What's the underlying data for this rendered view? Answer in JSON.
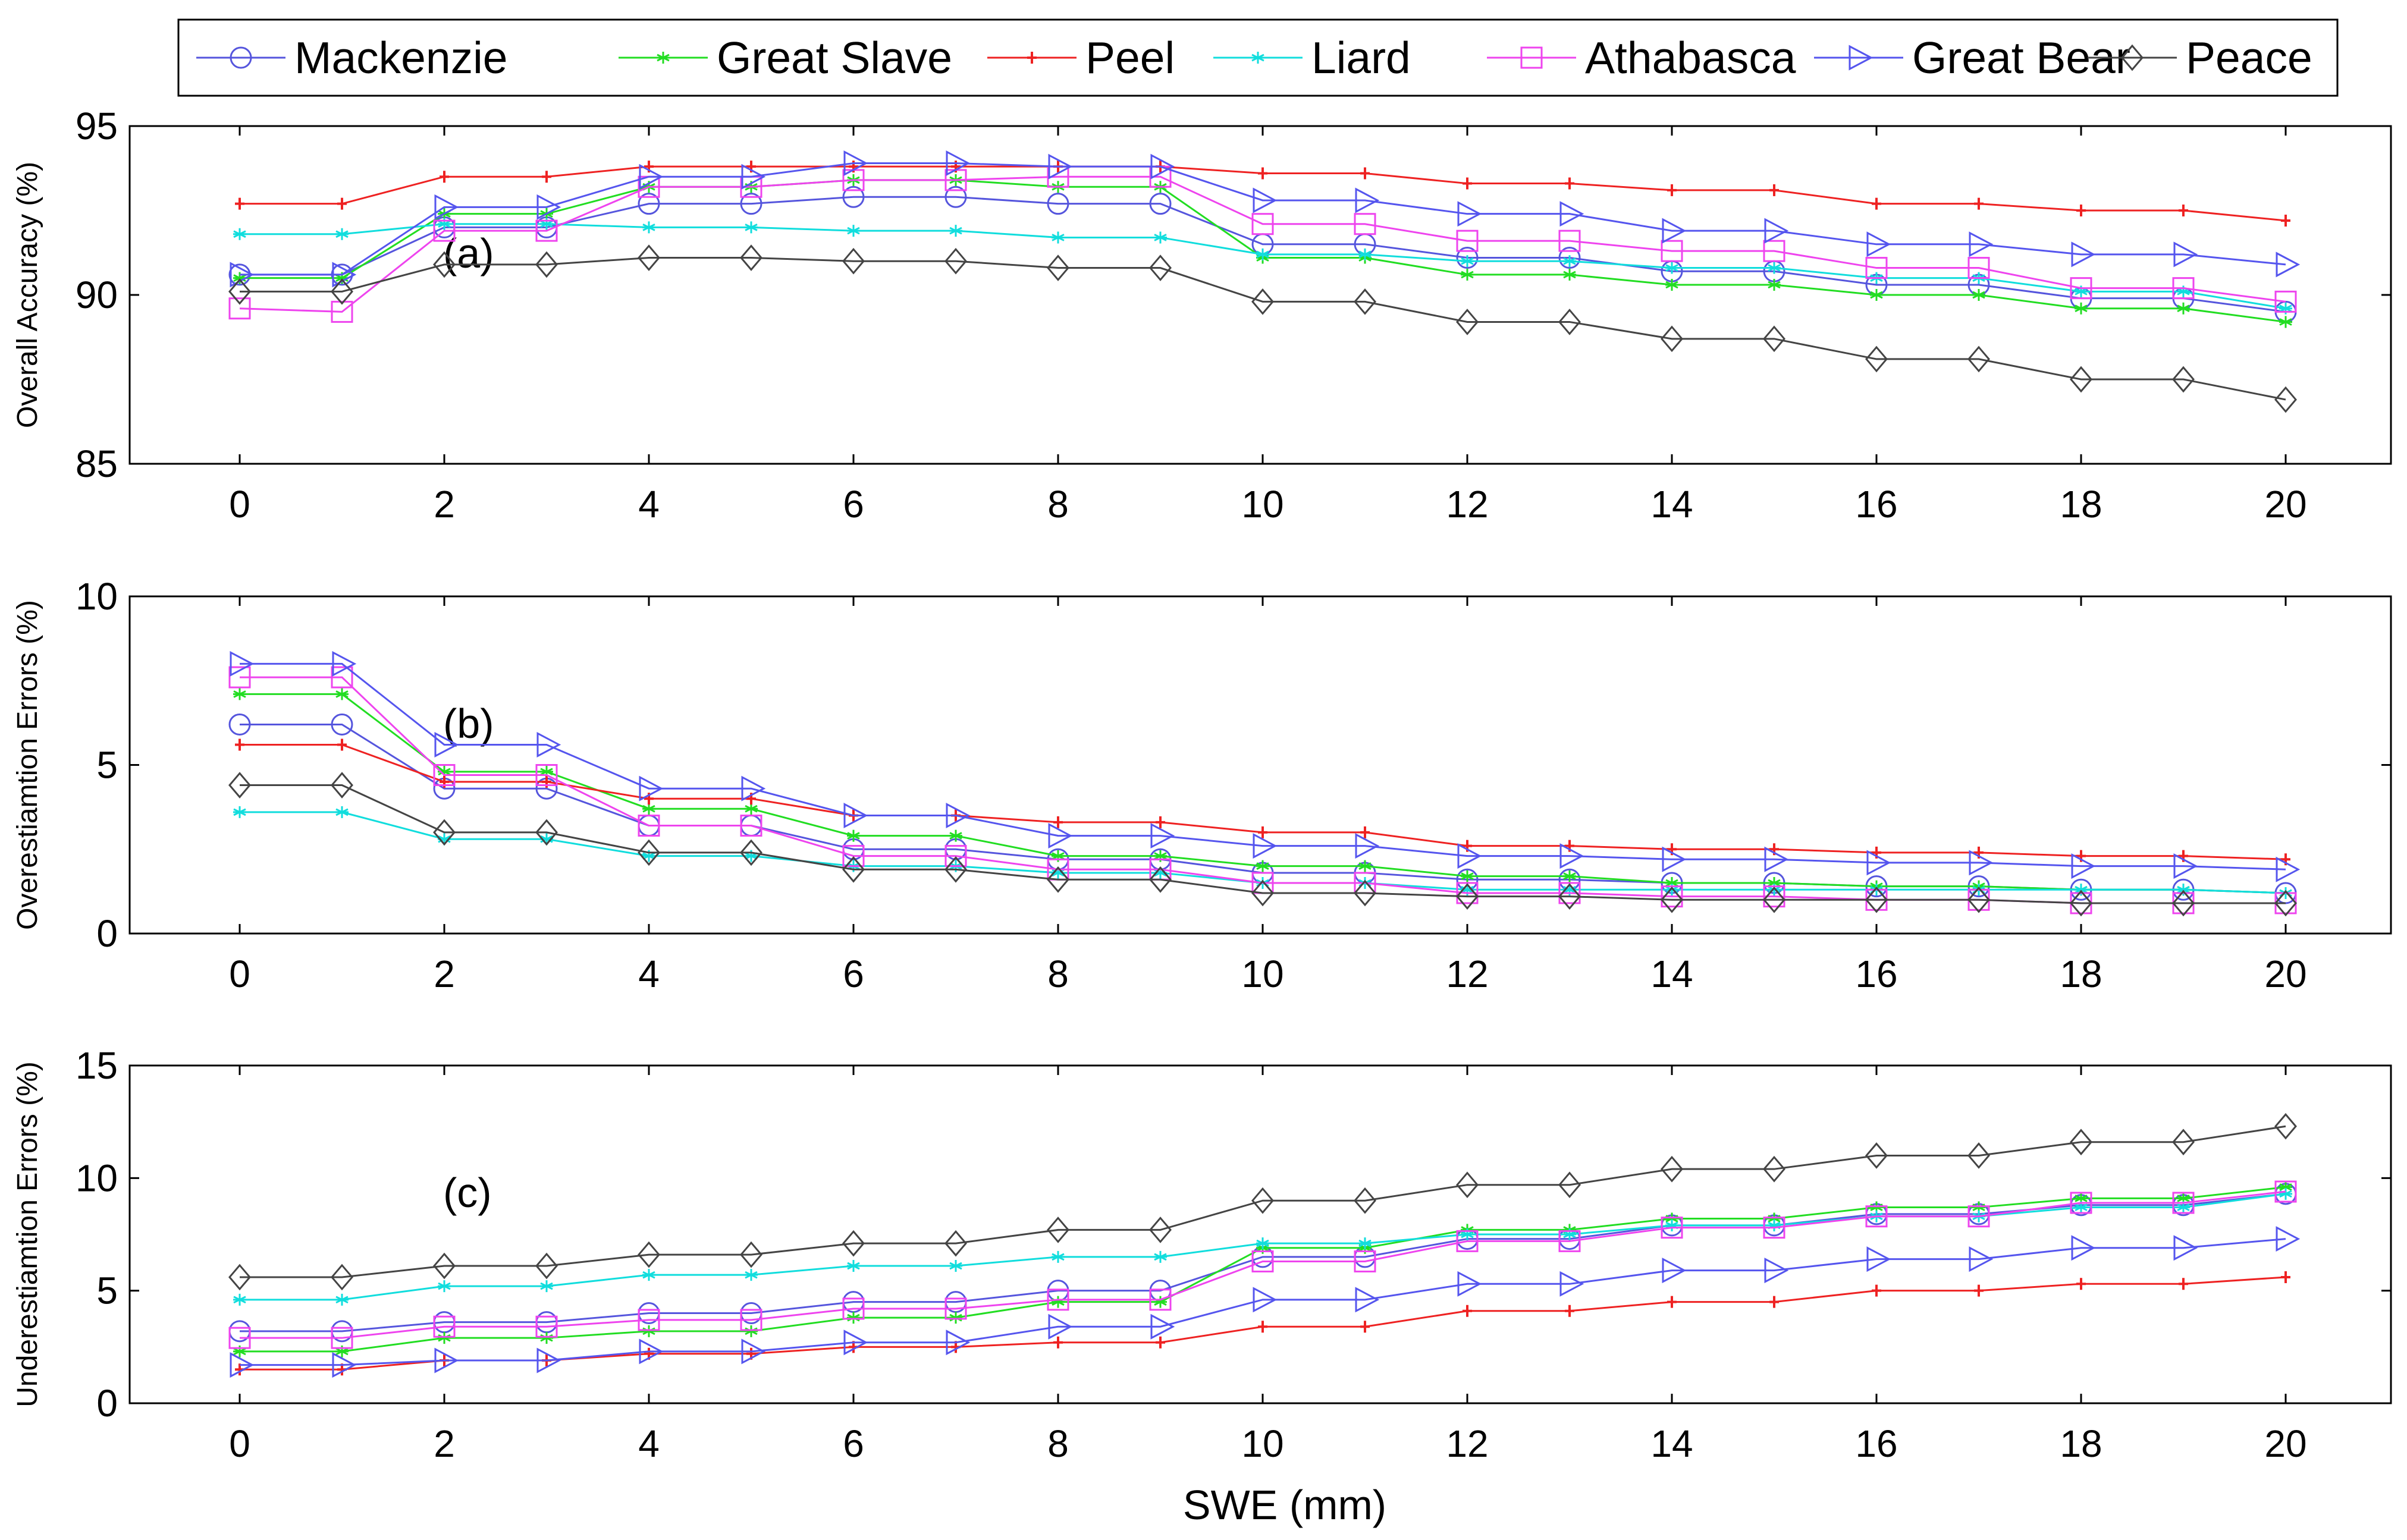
{
  "chart_data": {
    "type": "line",
    "xlabel": "SWE (mm)",
    "x": [
      0,
      1,
      2,
      3,
      4,
      5,
      6,
      7,
      8,
      9,
      10,
      11,
      12,
      13,
      14,
      15,
      16,
      17,
      18,
      19,
      20
    ],
    "xticks": [
      "0",
      "2",
      "4",
      "6",
      "8",
      "10",
      "12",
      "14",
      "16",
      "18",
      "20"
    ],
    "legend": {
      "placement": "top",
      "entries": [
        "Mackenzie",
        "Great Slave",
        "Peel",
        "Liard",
        "Athabasca",
        "Great Bear",
        "Peace"
      ]
    },
    "series_styles": [
      {
        "name": "Mackenzie",
        "color": "#5555dd",
        "marker": "circle"
      },
      {
        "name": "Great Slave",
        "color": "#22dd22",
        "marker": "star"
      },
      {
        "name": "Peel",
        "color": "#ee2222",
        "marker": "plus"
      },
      {
        "name": "Liard",
        "color": "#11dddd",
        "marker": "star"
      },
      {
        "name": "Athabasca",
        "color": "#ee44ee",
        "marker": "square"
      },
      {
        "name": "Great Bear",
        "color": "#5555ee",
        "marker": "triangle-right"
      },
      {
        "name": "Peace",
        "color": "#444444",
        "marker": "diamond"
      }
    ],
    "panels": [
      {
        "id": "a",
        "label": "(a)",
        "ylabel": "Overall Accuracy (%)",
        "ylim": [
          85,
          95
        ],
        "yticks": [
          "85",
          "90",
          "95"
        ],
        "series": [
          {
            "name": "Mackenzie",
            "values": [
              90.6,
              90.6,
              92.0,
              92.0,
              92.7,
              92.7,
              92.9,
              92.9,
              92.7,
              92.7,
              91.5,
              91.5,
              91.1,
              91.1,
              90.7,
              90.7,
              90.3,
              90.3,
              89.9,
              89.9,
              89.5
            ]
          },
          {
            "name": "Great Slave",
            "values": [
              90.5,
              90.5,
              92.4,
              92.4,
              93.2,
              93.2,
              93.4,
              93.4,
              93.2,
              93.2,
              91.1,
              91.1,
              90.6,
              90.6,
              90.3,
              90.3,
              90.0,
              90.0,
              89.6,
              89.6,
              89.2
            ]
          },
          {
            "name": "Peel",
            "values": [
              92.7,
              92.7,
              93.5,
              93.5,
              93.8,
              93.8,
              93.8,
              93.8,
              93.8,
              93.8,
              93.6,
              93.6,
              93.3,
              93.3,
              93.1,
              93.1,
              92.7,
              92.7,
              92.5,
              92.5,
              92.2
            ]
          },
          {
            "name": "Liard",
            "values": [
              91.8,
              91.8,
              92.1,
              92.1,
              92.0,
              92.0,
              91.9,
              91.9,
              91.7,
              91.7,
              91.2,
              91.2,
              91.0,
              91.0,
              90.8,
              90.8,
              90.5,
              90.5,
              90.1,
              90.1,
              89.6
            ]
          },
          {
            "name": "Athabasca",
            "values": [
              89.6,
              89.5,
              91.9,
              91.9,
              93.2,
              93.2,
              93.4,
              93.4,
              93.5,
              93.5,
              92.1,
              92.1,
              91.6,
              91.6,
              91.3,
              91.3,
              90.8,
              90.8,
              90.2,
              90.2,
              89.8
            ]
          },
          {
            "name": "Great Bear",
            "values": [
              90.6,
              90.6,
              92.6,
              92.6,
              93.5,
              93.5,
              93.9,
              93.9,
              93.8,
              93.8,
              92.8,
              92.8,
              92.4,
              92.4,
              91.9,
              91.9,
              91.5,
              91.5,
              91.2,
              91.2,
              90.9
            ]
          },
          {
            "name": "Peace",
            "values": [
              90.1,
              90.1,
              90.9,
              90.9,
              91.1,
              91.1,
              91.0,
              91.0,
              90.8,
              90.8,
              89.8,
              89.8,
              89.2,
              89.2,
              88.7,
              88.7,
              88.1,
              88.1,
              87.5,
              87.5,
              86.9
            ]
          }
        ]
      },
      {
        "id": "b",
        "label": "(b)",
        "ylabel": "Overestiamtion Errors (%)",
        "ylim": [
          0,
          10
        ],
        "yticks": [
          "0",
          "5",
          "10"
        ],
        "series": [
          {
            "name": "Mackenzie",
            "values": [
              6.2,
              6.2,
              4.3,
              4.3,
              3.2,
              3.2,
              2.5,
              2.5,
              2.2,
              2.2,
              1.8,
              1.8,
              1.6,
              1.6,
              1.5,
              1.5,
              1.4,
              1.4,
              1.3,
              1.3,
              1.2
            ]
          },
          {
            "name": "Great Slave",
            "values": [
              7.1,
              7.1,
              4.8,
              4.8,
              3.7,
              3.7,
              2.9,
              2.9,
              2.3,
              2.3,
              2.0,
              2.0,
              1.7,
              1.7,
              1.5,
              1.5,
              1.4,
              1.4,
              1.3,
              1.3,
              1.2
            ]
          },
          {
            "name": "Peel",
            "values": [
              5.6,
              5.6,
              4.5,
              4.5,
              4.0,
              4.0,
              3.5,
              3.5,
              3.3,
              3.3,
              3.0,
              3.0,
              2.6,
              2.6,
              2.5,
              2.5,
              2.4,
              2.4,
              2.3,
              2.3,
              2.2
            ]
          },
          {
            "name": "Liard",
            "values": [
              3.6,
              3.6,
              2.8,
              2.8,
              2.3,
              2.3,
              2.0,
              2.0,
              1.8,
              1.8,
              1.5,
              1.5,
              1.3,
              1.3,
              1.3,
              1.3,
              1.3,
              1.3,
              1.3,
              1.3,
              1.2
            ]
          },
          {
            "name": "Athabasca",
            "values": [
              7.6,
              7.6,
              4.7,
              4.7,
              3.2,
              3.2,
              2.3,
              2.3,
              1.9,
              1.9,
              1.5,
              1.5,
              1.2,
              1.2,
              1.1,
              1.1,
              1.0,
              1.0,
              0.9,
              0.9,
              0.9
            ]
          },
          {
            "name": "Great Bear",
            "values": [
              8.0,
              8.0,
              5.6,
              5.6,
              4.3,
              4.3,
              3.5,
              3.5,
              2.9,
              2.9,
              2.6,
              2.6,
              2.3,
              2.3,
              2.2,
              2.2,
              2.1,
              2.1,
              2.0,
              2.0,
              1.9
            ]
          },
          {
            "name": "Peace",
            "values": [
              4.4,
              4.4,
              3.0,
              3.0,
              2.4,
              2.4,
              1.9,
              1.9,
              1.6,
              1.6,
              1.2,
              1.2,
              1.1,
              1.1,
              1.0,
              1.0,
              1.0,
              1.0,
              0.9,
              0.9,
              0.9
            ]
          }
        ]
      },
      {
        "id": "c",
        "label": "(c)",
        "ylabel": "Underestiamtion Errors (%)",
        "ylim": [
          0,
          15
        ],
        "yticks": [
          "0",
          "5",
          "10",
          "15"
        ],
        "series": [
          {
            "name": "Mackenzie",
            "values": [
              3.2,
              3.2,
              3.6,
              3.6,
              4.0,
              4.0,
              4.5,
              4.5,
              5.0,
              5.0,
              6.5,
              6.5,
              7.3,
              7.3,
              7.9,
              7.9,
              8.4,
              8.4,
              8.8,
              8.8,
              9.3
            ]
          },
          {
            "name": "Great Slave",
            "values": [
              2.3,
              2.3,
              2.9,
              2.9,
              3.2,
              3.2,
              3.8,
              3.8,
              4.5,
              4.5,
              6.9,
              6.9,
              7.7,
              7.7,
              8.2,
              8.2,
              8.7,
              8.7,
              9.1,
              9.1,
              9.6
            ]
          },
          {
            "name": "Peel",
            "values": [
              1.5,
              1.5,
              1.9,
              1.9,
              2.2,
              2.2,
              2.5,
              2.5,
              2.7,
              2.7,
              3.4,
              3.4,
              4.1,
              4.1,
              4.5,
              4.5,
              5.0,
              5.0,
              5.3,
              5.3,
              5.6
            ]
          },
          {
            "name": "Liard",
            "values": [
              4.6,
              4.6,
              5.2,
              5.2,
              5.7,
              5.7,
              6.1,
              6.1,
              6.5,
              6.5,
              7.1,
              7.1,
              7.5,
              7.5,
              7.9,
              7.9,
              8.3,
              8.3,
              8.7,
              8.7,
              9.3
            ]
          },
          {
            "name": "Athabasca",
            "values": [
              2.9,
              2.9,
              3.4,
              3.4,
              3.7,
              3.7,
              4.2,
              4.2,
              4.6,
              4.6,
              6.3,
              6.3,
              7.2,
              7.2,
              7.8,
              7.8,
              8.3,
              8.3,
              8.9,
              8.9,
              9.4
            ]
          },
          {
            "name": "Great Bear",
            "values": [
              1.7,
              1.7,
              1.9,
              1.9,
              2.3,
              2.3,
              2.7,
              2.7,
              3.4,
              3.4,
              4.6,
              4.6,
              5.3,
              5.3,
              5.9,
              5.9,
              6.4,
              6.4,
              6.9,
              6.9,
              7.3
            ]
          },
          {
            "name": "Peace",
            "values": [
              5.6,
              5.6,
              6.1,
              6.1,
              6.6,
              6.6,
              7.1,
              7.1,
              7.7,
              7.7,
              9.0,
              9.0,
              9.7,
              9.7,
              10.4,
              10.4,
              11.0,
              11.0,
              11.6,
              11.6,
              12.3
            ]
          }
        ]
      }
    ]
  }
}
